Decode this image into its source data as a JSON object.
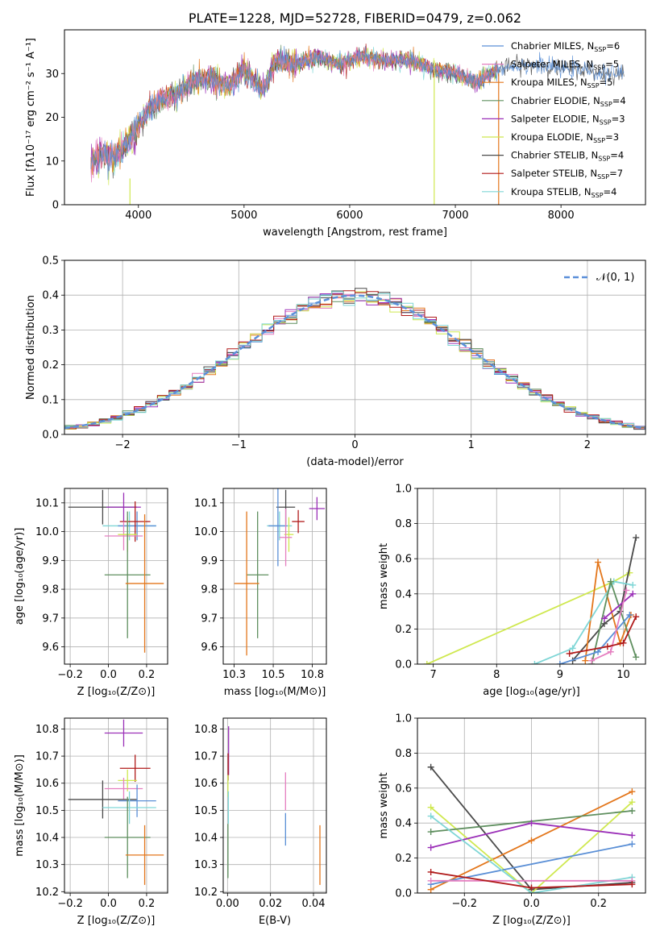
{
  "figure": {
    "colors": {
      "chabrier_miles": "#5a8fd6",
      "salpeter_miles": "#e57fc0",
      "kroupa_miles": "#e3761b",
      "chabrier_elodie": "#5f8f5f",
      "salpeter_elodie": "#9b30b8",
      "kroupa_elodie": "#cfe84f",
      "chabrier_stelib": "#4a4a4a",
      "salpeter_stelib": "#b01a1a",
      "kroupa_stelib": "#7fd6d6",
      "gaussian": "#5b8fd9",
      "grid": "#b0b0b0"
    }
  },
  "chart_data": [
    {
      "id": "spectrum",
      "type": "line",
      "title": "PLATE=1228, MJD=52728, FIBERID=0479, z=0.062",
      "xlabel": "wavelength [Angstrom, rest frame]",
      "ylabel": "Flux [fλ10⁻¹⁷ erg cm⁻² s⁻¹ A⁻¹]",
      "xlim": [
        3300,
        8800
      ],
      "ylim": [
        0,
        40
      ],
      "xticks": [
        4000,
        5000,
        6000,
        7000,
        8000
      ],
      "yticks": [
        0,
        10,
        20,
        30
      ],
      "grid": false,
      "legend_position": "top-right",
      "continuum": [
        [
          3550,
          9
        ],
        [
          3650,
          12
        ],
        [
          3750,
          11
        ],
        [
          3850,
          13
        ],
        [
          3950,
          16
        ],
        [
          4050,
          20
        ],
        [
          4200,
          24
        ],
        [
          4350,
          25
        ],
        [
          4500,
          28
        ],
        [
          4700,
          29
        ],
        [
          4860,
          27
        ],
        [
          5000,
          31
        ],
        [
          5175,
          26
        ],
        [
          5300,
          33
        ],
        [
          5500,
          32
        ],
        [
          5700,
          34
        ],
        [
          5900,
          32
        ],
        [
          6100,
          34
        ],
        [
          6300,
          33
        ],
        [
          6560,
          33
        ],
        [
          6800,
          31
        ],
        [
          7000,
          30
        ],
        [
          7200,
          28
        ],
        [
          7400,
          31
        ],
        [
          7600,
          32
        ],
        [
          7800,
          32
        ],
        [
          8000,
          31
        ],
        [
          8200,
          31
        ],
        [
          8400,
          30
        ],
        [
          8600,
          30
        ]
      ],
      "series": [
        {
          "name": "Chabrier MILES, N",
          "sub": "SSP",
          "eq": "=6",
          "color_key": "chabrier_miles"
        },
        {
          "name": "Salpeter MILES, N",
          "sub": "SSP",
          "eq": "=5",
          "color_key": "salpeter_miles"
        },
        {
          "name": "Kroupa MILES, N",
          "sub": "SSP",
          "eq": "=5",
          "color_key": "kroupa_miles"
        },
        {
          "name": "Chabrier ELODIE, N",
          "sub": "SSP",
          "eq": "=4",
          "color_key": "chabrier_elodie"
        },
        {
          "name": "Salpeter ELODIE, N",
          "sub": "SSP",
          "eq": "=3",
          "color_key": "salpeter_elodie"
        },
        {
          "name": "Kroupa ELODIE, N",
          "sub": "SSP",
          "eq": "=3",
          "color_key": "kroupa_elodie"
        },
        {
          "name": "Chabrier STELIB, N",
          "sub": "SSP",
          "eq": "=4",
          "color_key": "chabrier_stelib"
        },
        {
          "name": "Salpeter STELIB, N",
          "sub": "SSP",
          "eq": "=7",
          "color_key": "salpeter_stelib"
        },
        {
          "name": "Kroupa STELIB, N",
          "sub": "SSP",
          "eq": "=4",
          "color_key": "kroupa_stelib"
        }
      ]
    },
    {
      "id": "residuals",
      "type": "line",
      "xlabel": "(data-model)/error",
      "ylabel": "Normed distribution",
      "xlim": [
        -2.5,
        2.5
      ],
      "ylim": [
        0,
        0.5
      ],
      "xticks": [
        -2,
        -1,
        0,
        1,
        2
      ],
      "yticks": [
        0.0,
        0.1,
        0.2,
        0.3,
        0.4,
        0.5
      ],
      "grid": true,
      "legend_position": "top-right",
      "gaussian_label": "𝒩(0, 1)",
      "bin_width": 0.1
    },
    {
      "id": "age_vs_Z",
      "type": "scatter",
      "xlabel": "Z [log₁₀(Z/Z⊙)]",
      "ylabel": "age  [log₁₀(age/yr)]",
      "xlim": [
        -0.23,
        0.31
      ],
      "ylim": [
        9.54,
        10.15
      ],
      "xticks": [
        -0.2,
        0.0,
        0.2
      ],
      "yticks": [
        9.6,
        9.7,
        9.8,
        9.9,
        10.0,
        10.1
      ],
      "grid": true,
      "points": [
        {
          "c": "chabrier_stelib",
          "x": -0.03,
          "y": 10.085,
          "xe": 0.18,
          "ye": 0.06
        },
        {
          "c": "salpeter_elodie",
          "x": 0.08,
          "y": 10.085,
          "xe": 0.09,
          "ye": 0.05
        },
        {
          "c": "kroupa_stelib",
          "x": 0.11,
          "y": 10.02,
          "xe": 0.14,
          "ye": 0.05
        },
        {
          "c": "chabrier_miles",
          "x": 0.15,
          "y": 10.02,
          "xe": 0.1,
          "ye": 0.05
        },
        {
          "c": "salpeter_stelib",
          "x": 0.14,
          "y": 10.035,
          "xe": 0.08,
          "ye": 0.07
        },
        {
          "c": "salpeter_miles",
          "x": 0.08,
          "y": 9.985,
          "xe": 0.1,
          "ye": 0.05
        },
        {
          "c": "kroupa_elodie",
          "x": 0.1,
          "y": 9.99,
          "xe": 0.05,
          "ye": 0.06
        },
        {
          "c": "chabrier_elodie",
          "x": 0.1,
          "y": 9.85,
          "xe": 0.12,
          "ye": 0.22
        },
        {
          "c": "kroupa_miles",
          "x": 0.19,
          "y": 9.82,
          "xe": 0.1,
          "ye": 0.24
        }
      ]
    },
    {
      "id": "age_vs_mass",
      "type": "scatter",
      "xlabel": "mass [log₁₀(M/M⊙)]",
      "xlim": [
        10.18,
        10.84
      ],
      "ylim": [
        9.54,
        10.15
      ],
      "xticks": [
        10.25,
        10.5,
        10.75
      ],
      "yticks": [
        9.6,
        9.7,
        9.8,
        9.9,
        10.0,
        10.1
      ],
      "grid": true,
      "points": [
        {
          "c": "chabrier_stelib",
          "x": 10.58,
          "y": 10.085,
          "xe": 0.06,
          "ye": 0.06
        },
        {
          "c": "salpeter_elodie",
          "x": 10.78,
          "y": 10.08,
          "xe": 0.05,
          "ye": 0.04
        },
        {
          "c": "salpeter_stelib",
          "x": 10.66,
          "y": 10.035,
          "xe": 0.04,
          "ye": 0.04
        },
        {
          "c": "kroupa_stelib",
          "x": 10.54,
          "y": 10.02,
          "xe": 0.08,
          "ye": 0.05
        },
        {
          "c": "chabrier_miles",
          "x": 10.53,
          "y": 10.02,
          "xe": 0.06,
          "ye": 0.14
        },
        {
          "c": "kroupa_elodie",
          "x": 10.6,
          "y": 9.99,
          "xe": 0.03,
          "ye": 0.06
        },
        {
          "c": "salpeter_miles",
          "x": 10.58,
          "y": 9.98,
          "xe": 0.04,
          "ye": 0.1
        },
        {
          "c": "chabrier_elodie",
          "x": 10.4,
          "y": 9.85,
          "xe": 0.07,
          "ye": 0.22
        },
        {
          "c": "kroupa_miles",
          "x": 10.33,
          "y": 9.82,
          "xe": 0.08,
          "ye": 0.25
        }
      ]
    },
    {
      "id": "mass_weight_vs_age",
      "type": "line",
      "xlabel": "age  [log₁₀(age/yr)]",
      "ylabel": "mass weight",
      "xlim": [
        6.75,
        10.35
      ],
      "ylim": [
        0,
        1.0
      ],
      "xticks": [
        7,
        8,
        9,
        10
      ],
      "yticks": [
        0.0,
        0.2,
        0.4,
        0.6,
        0.8,
        1.0
      ],
      "grid": true,
      "series": [
        {
          "c": "kroupa_elodie",
          "x": [
            6.9,
            9.85,
            10.1
          ],
          "y": [
            0.0,
            0.47,
            0.52
          ]
        },
        {
          "c": "chabrier_stelib",
          "x": [
            9.2,
            9.7,
            9.95,
            10.2
          ],
          "y": [
            0.02,
            0.23,
            0.3,
            0.72
          ]
        },
        {
          "c": "kroupa_miles",
          "x": [
            9.4,
            9.6,
            9.95,
            10.12
          ],
          "y": [
            0.02,
            0.58,
            0.12,
            0.28
          ]
        },
        {
          "c": "kroupa_stelib",
          "x": [
            8.6,
            9.2,
            9.85,
            10.15
          ],
          "y": [
            0.0,
            0.09,
            0.47,
            0.45
          ]
        },
        {
          "c": "chabrier_elodie",
          "x": [
            9.5,
            9.8,
            10.2
          ],
          "y": [
            0.0,
            0.47,
            0.04
          ]
        },
        {
          "c": "salpeter_elodie",
          "x": [
            9.7,
            10.15
          ],
          "y": [
            0.26,
            0.4
          ]
        },
        {
          "c": "chabrier_miles",
          "x": [
            9.0,
            9.6,
            10.1
          ],
          "y": [
            0.0,
            0.07,
            0.28
          ]
        },
        {
          "c": "salpeter_miles",
          "x": [
            9.5,
            9.8,
            10.05
          ],
          "y": [
            0.02,
            0.07,
            0.42
          ]
        },
        {
          "c": "salpeter_stelib",
          "x": [
            9.15,
            9.75,
            10.0,
            10.2
          ],
          "y": [
            0.06,
            0.1,
            0.12,
            0.27
          ]
        }
      ]
    },
    {
      "id": "mass_vs_Z",
      "type": "scatter",
      "xlabel": "Z [log₁₀(Z/Z⊙)]",
      "ylabel": "mass [log₁₀(M/M⊙)]",
      "xlim": [
        -0.23,
        0.31
      ],
      "ylim": [
        10.195,
        10.84
      ],
      "xticks": [
        -0.2,
        0.0,
        0.2
      ],
      "yticks": [
        10.2,
        10.3,
        10.4,
        10.5,
        10.6,
        10.7,
        10.8
      ],
      "grid": true,
      "points": [
        {
          "c": "salpeter_elodie",
          "x": 0.08,
          "y": 10.785,
          "xe": 0.1,
          "ye": 0.05
        },
        {
          "c": "salpeter_stelib",
          "x": 0.14,
          "y": 10.655,
          "xe": 0.08,
          "ye": 0.05
        },
        {
          "c": "kroupa_elodie",
          "x": 0.1,
          "y": 10.61,
          "xe": 0.05,
          "ye": 0.04
        },
        {
          "c": "salpeter_miles",
          "x": 0.08,
          "y": 10.58,
          "xe": 0.1,
          "ye": 0.04
        },
        {
          "c": "chabrier_stelib",
          "x": -0.03,
          "y": 10.54,
          "xe": 0.18,
          "ye": 0.07
        },
        {
          "c": "chabrier_miles",
          "x": 0.15,
          "y": 10.535,
          "xe": 0.1,
          "ye": 0.06
        },
        {
          "c": "kroupa_stelib",
          "x": 0.11,
          "y": 10.51,
          "xe": 0.14,
          "ye": 0.06
        },
        {
          "c": "chabrier_elodie",
          "x": 0.1,
          "y": 10.4,
          "xe": 0.12,
          "ye": 0.15
        },
        {
          "c": "kroupa_miles",
          "x": 0.19,
          "y": 10.335,
          "xe": 0.1,
          "ye": 0.11
        }
      ]
    },
    {
      "id": "mass_vs_EBV",
      "type": "scatter",
      "xlabel": "E(B-V)",
      "xlim": [
        -0.002,
        0.046
      ],
      "ylim": [
        10.195,
        10.84
      ],
      "xticks": [
        0.0,
        0.02,
        0.04
      ],
      "yticks": [
        10.2,
        10.3,
        10.4,
        10.5,
        10.6,
        10.7,
        10.8
      ],
      "grid": true,
      "points": [
        {
          "c": "salpeter_elodie",
          "x": 0.0005,
          "y": 10.72,
          "xe": 0.0,
          "ye": 0.09
        },
        {
          "c": "salpeter_stelib",
          "x": 0.0003,
          "y": 10.66,
          "xe": 0.0,
          "ye": 0.05
        },
        {
          "c": "kroupa_elodie",
          "x": 0.0002,
          "y": 10.59,
          "xe": 0.0,
          "ye": 0.04
        },
        {
          "c": "kroupa_stelib",
          "x": 0.0004,
          "y": 10.51,
          "xe": 0.0,
          "ye": 0.06
        },
        {
          "c": "chabrier_elodie",
          "x": 0.0002,
          "y": 10.35,
          "xe": 0.0,
          "ye": 0.1
        },
        {
          "c": "salpeter_miles",
          "x": 0.027,
          "y": 10.57,
          "xe": 0.0,
          "ye": 0.07
        },
        {
          "c": "chabrier_miles",
          "x": 0.027,
          "y": 10.43,
          "xe": 0.0,
          "ye": 0.06
        },
        {
          "c": "kroupa_miles",
          "x": 0.043,
          "y": 10.335,
          "xe": 0.0,
          "ye": 0.11
        }
      ]
    },
    {
      "id": "mass_weight_vs_Z",
      "type": "line",
      "xlabel": "Z [log₁₀(Z/Z⊙)]",
      "ylabel": "mass weight",
      "xlim": [
        -0.34,
        0.34
      ],
      "ylim": [
        0,
        1.0
      ],
      "xticks": [
        -0.2,
        0.0,
        0.2
      ],
      "yticks": [
        0.0,
        0.2,
        0.4,
        0.6,
        0.8,
        1.0
      ],
      "grid": true,
      "series": [
        {
          "c": "chabrier_stelib",
          "x": [
            -0.3,
            0.0,
            0.3
          ],
          "y": [
            0.72,
            0.02,
            0.06
          ]
        },
        {
          "c": "kroupa_miles",
          "x": [
            -0.3,
            0.0,
            0.3
          ],
          "y": [
            0.02,
            0.3,
            0.58
          ]
        },
        {
          "c": "kroupa_elodie",
          "x": [
            -0.3,
            0.0,
            0.3
          ],
          "y": [
            0.49,
            0.0,
            0.52
          ]
        },
        {
          "c": "chabrier_elodie",
          "x": [
            -0.3,
            0.3
          ],
          "y": [
            0.35,
            0.47
          ]
        },
        {
          "c": "salpeter_elodie",
          "x": [
            -0.3,
            0.0,
            0.3
          ],
          "y": [
            0.26,
            0.4,
            0.33
          ]
        },
        {
          "c": "chabrier_miles",
          "x": [
            -0.3,
            0.3
          ],
          "y": [
            0.05,
            0.28
          ]
        },
        {
          "c": "kroupa_stelib",
          "x": [
            -0.3,
            0.0,
            0.3
          ],
          "y": [
            0.44,
            0.0,
            0.09
          ]
        },
        {
          "c": "salpeter_miles",
          "x": [
            -0.3,
            0.3
          ],
          "y": [
            0.07,
            0.07
          ]
        },
        {
          "c": "salpeter_stelib",
          "x": [
            -0.3,
            0.0,
            0.3
          ],
          "y": [
            0.12,
            0.03,
            0.05
          ]
        }
      ]
    }
  ]
}
